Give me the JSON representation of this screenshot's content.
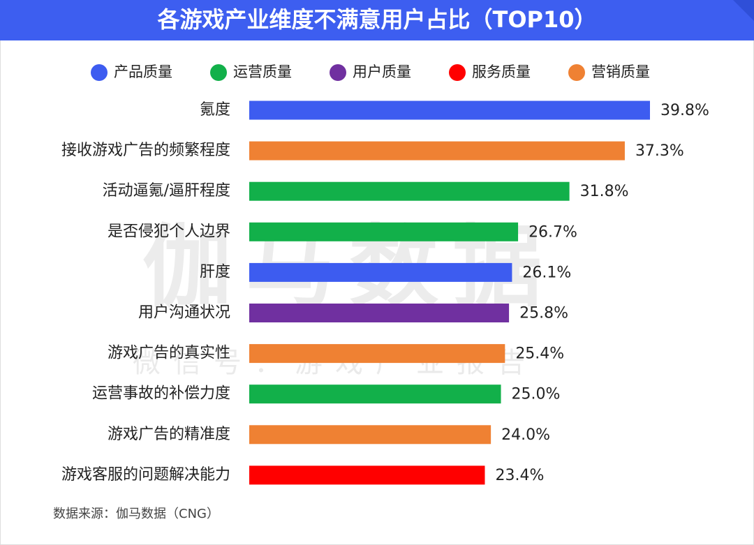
{
  "chart_data": {
    "type": "bar",
    "orientation": "horizontal",
    "title": "各游戏产业维度不满意用户占比（TOP10）",
    "categories": [
      "氪度",
      "接收游戏广告的频繁程度",
      "活动逼氪/逼肝程度",
      "是否侵犯个人边界",
      "肝度",
      "用户沟通状况",
      "游戏广告的真实性",
      "运营事故的补偿力度",
      "游戏广告的精准度",
      "游戏客服的问题解决能力"
    ],
    "series": [
      {
        "name": "产品质量",
        "color": "#3d5cf0",
        "values": [
          39.8,
          null,
          null,
          null,
          26.1,
          null,
          null,
          null,
          null,
          null
        ],
        "value_labels": [
          "39.8%",
          null,
          null,
          null,
          "26.1%",
          null,
          null,
          null,
          null,
          null
        ]
      },
      {
        "name": "运营质量",
        "color": "#12b04a",
        "values": [
          null,
          null,
          31.8,
          26.7,
          null,
          null,
          null,
          25.0,
          null,
          null
        ],
        "value_labels": [
          null,
          null,
          "31.8%",
          "26.7%",
          null,
          null,
          null,
          "25.0%",
          null,
          null
        ]
      },
      {
        "name": "用户质量",
        "color": "#7030a0",
        "values": [
          null,
          null,
          null,
          null,
          null,
          25.8,
          null,
          null,
          null,
          null
        ],
        "value_labels": [
          null,
          null,
          null,
          null,
          null,
          "25.8%",
          null,
          null,
          null,
          null
        ]
      },
      {
        "name": "服务质量",
        "color": "#ff0000",
        "values": [
          null,
          null,
          null,
          null,
          null,
          null,
          null,
          null,
          null,
          23.4
        ],
        "value_labels": [
          null,
          null,
          null,
          null,
          null,
          null,
          null,
          null,
          null,
          "23.4%"
        ]
      },
      {
        "name": "营销质量",
        "color": "#ef8133",
        "values": [
          null,
          37.3,
          null,
          null,
          null,
          null,
          25.4,
          null,
          24.0,
          null
        ],
        "value_labels": [
          null,
          "37.3%",
          null,
          null,
          null,
          null,
          "25.4%",
          null,
          "24.0%",
          null
        ]
      }
    ],
    "source": "数据来源：伽马数据（CNG）",
    "watermark": "伽马数据",
    "watermark_sub": "微信号：游戏产业报告"
  }
}
